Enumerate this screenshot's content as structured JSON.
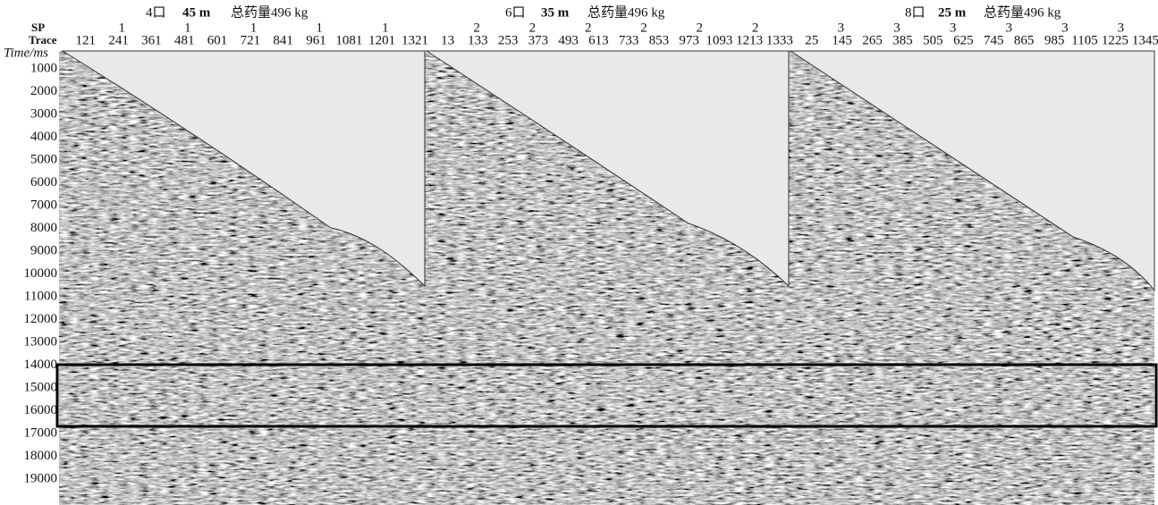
{
  "y_axis": {
    "label": "Time/ms",
    "ticks": [
      "1000",
      "2000",
      "3000",
      "4000",
      "5000",
      "6000",
      "7000",
      "8000",
      "9000",
      "10000",
      "11000",
      "12000",
      "13000",
      "14000",
      "15000",
      "16000",
      "17000",
      "18000",
      "19000"
    ]
  },
  "row_labels": {
    "sp": "SP",
    "trace": "Trace"
  },
  "panels": [
    {
      "header": {
        "holes": "4口",
        "depth": "45 m",
        "charge": "总药量496 kg"
      },
      "sp": [
        "1",
        "1",
        "1",
        "1",
        "1"
      ],
      "traces": [
        "121",
        "241",
        "361",
        "481",
        "601",
        "721",
        "841",
        "961",
        "1081",
        "1201",
        "1321"
      ]
    },
    {
      "header": {
        "holes": "6口",
        "depth": "35 m",
        "charge": "总药量496 kg"
      },
      "sp": [
        "2",
        "2",
        "2",
        "2",
        "2",
        "2"
      ],
      "traces": [
        "13",
        "133",
        "253",
        "373",
        "493",
        "613",
        "733",
        "853",
        "973",
        "1093",
        "1213",
        "1333"
      ]
    },
    {
      "header": {
        "holes": "8口",
        "depth": "25 m",
        "charge": "总药量496 kg"
      },
      "sp": [
        "3",
        "3",
        "3",
        "3",
        "3",
        "3"
      ],
      "traces": [
        "25",
        "145",
        "265",
        "385",
        "505",
        "625",
        "745",
        "865",
        "985",
        "1105",
        "1225",
        "1345"
      ]
    }
  ]
}
